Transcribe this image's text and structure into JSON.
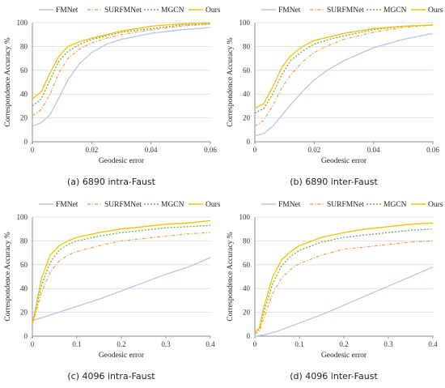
{
  "legend": [
    "FMNet",
    "SURFMNet",
    "MGCN",
    "Ours"
  ],
  "styles": {
    "FMNet": {
      "color": "#b4c7e7",
      "dash": ""
    },
    "SURFMNet": {
      "color": "#f4a460",
      "dash": "4,2,1.2,2"
    },
    "MGCN": {
      "color": "#70ad47",
      "dash": "2,2"
    },
    "Ours": {
      "color": "#f5c000",
      "dash": ""
    }
  },
  "chart_data": [
    {
      "type": "line",
      "caption": "(a) 6890 intra-Faust",
      "xlabel": "Geodesic error",
      "ylabel": "Correspondence Accuracy %",
      "xlim": [
        0,
        0.06
      ],
      "ylim": [
        0,
        100
      ],
      "xticks": [
        0,
        0.02,
        0.04,
        0.06
      ],
      "xtick_labels": [
        "0",
        "0.02",
        "0.04",
        "0.06"
      ],
      "yticks": [
        0,
        20,
        40,
        60,
        80,
        100
      ],
      "ytick_labels": [
        "0",
        "20",
        "40",
        "60",
        "80",
        "100"
      ],
      "grid": "horizontal",
      "legend_position": "top",
      "series": [
        {
          "name": "FMNet",
          "x": [
            0,
            0.003,
            0.006,
            0.009,
            0.012,
            0.016,
            0.02,
            0.025,
            0.03,
            0.04,
            0.05,
            0.06
          ],
          "y": [
            13,
            16,
            23,
            37,
            52,
            66,
            75,
            82,
            86,
            91,
            94,
            96
          ]
        },
        {
          "name": "SURFMNet",
          "x": [
            0,
            0.003,
            0.006,
            0.009,
            0.012,
            0.016,
            0.02,
            0.025,
            0.03,
            0.04,
            0.05,
            0.06
          ],
          "y": [
            22,
            27,
            40,
            58,
            70,
            78,
            83,
            87,
            90,
            94,
            97,
            99
          ]
        },
        {
          "name": "MGCN",
          "x": [
            0,
            0.003,
            0.006,
            0.009,
            0.012,
            0.016,
            0.02,
            0.025,
            0.03,
            0.04,
            0.05,
            0.06
          ],
          "y": [
            30,
            36,
            52,
            68,
            76,
            82,
            86,
            89,
            92,
            95,
            98,
            99
          ]
        },
        {
          "name": "Ours",
          "x": [
            0,
            0.003,
            0.006,
            0.009,
            0.012,
            0.016,
            0.02,
            0.025,
            0.03,
            0.04,
            0.05,
            0.06
          ],
          "y": [
            36,
            42,
            58,
            72,
            80,
            84,
            87,
            90,
            93,
            97,
            99,
            100
          ]
        }
      ]
    },
    {
      "type": "line",
      "caption": "(b) 6890 inter-Faust",
      "xlabel": "Geodesic error",
      "ylabel": "Correspondence Accuracy %",
      "xlim": [
        0,
        0.06
      ],
      "ylim": [
        0,
        100
      ],
      "xticks": [
        0,
        0.02,
        0.04,
        0.06
      ],
      "xtick_labels": [
        "0",
        "0.02",
        "0.04",
        "0.06"
      ],
      "yticks": [
        0,
        20,
        40,
        60,
        80,
        100
      ],
      "ytick_labels": [
        "0",
        "20",
        "40",
        "60",
        "80",
        "100"
      ],
      "grid": "horizontal",
      "legend_position": "top",
      "series": [
        {
          "name": "FMNet",
          "x": [
            0,
            0.003,
            0.006,
            0.009,
            0.012,
            0.016,
            0.02,
            0.025,
            0.03,
            0.04,
            0.05,
            0.06
          ],
          "y": [
            5,
            7,
            13,
            22,
            31,
            42,
            52,
            61,
            68,
            79,
            86,
            91
          ]
        },
        {
          "name": "SURFMNet",
          "x": [
            0,
            0.003,
            0.006,
            0.009,
            0.012,
            0.016,
            0.02,
            0.025,
            0.03,
            0.04,
            0.05,
            0.06
          ],
          "y": [
            13,
            18,
            30,
            45,
            56,
            67,
            75,
            81,
            86,
            92,
            96,
            98
          ]
        },
        {
          "name": "MGCN",
          "x": [
            0,
            0.003,
            0.006,
            0.009,
            0.012,
            0.016,
            0.02,
            0.025,
            0.03,
            0.04,
            0.05,
            0.06
          ],
          "y": [
            24,
            28,
            40,
            56,
            68,
            76,
            82,
            86,
            89,
            94,
            97,
            98
          ]
        },
        {
          "name": "Ours",
          "x": [
            0,
            0.003,
            0.006,
            0.009,
            0.012,
            0.016,
            0.02,
            0.025,
            0.03,
            0.04,
            0.05,
            0.06
          ],
          "y": [
            28,
            32,
            46,
            62,
            72,
            80,
            85,
            88,
            91,
            95,
            97,
            98
          ]
        }
      ]
    },
    {
      "type": "line",
      "caption": "(c) 4096 intra-Faust",
      "xlabel": "Geodesic error",
      "ylabel": "Correspondence Accuracy %",
      "xlim": [
        0,
        0.4
      ],
      "ylim": [
        0,
        100
      ],
      "xticks": [
        0,
        0.1,
        0.2,
        0.3,
        0.4
      ],
      "xtick_labels": [
        "0",
        "0.1",
        "0.2",
        "0.3",
        "0.4"
      ],
      "yticks": [
        0,
        20,
        40,
        60,
        80,
        100
      ],
      "ytick_labels": [
        "0",
        "20",
        "40",
        "60",
        "80",
        "100"
      ],
      "grid": "horizontal",
      "legend_position": "top",
      "series": [
        {
          "name": "FMNet",
          "x": [
            0,
            0.05,
            0.1,
            0.15,
            0.2,
            0.25,
            0.3,
            0.35,
            0.4
          ],
          "y": [
            13,
            19,
            25,
            31,
            38,
            45,
            52,
            58,
            66
          ]
        },
        {
          "name": "SURFMNet",
          "x": [
            0,
            0.02,
            0.04,
            0.06,
            0.08,
            0.1,
            0.15,
            0.2,
            0.25,
            0.3,
            0.35,
            0.4
          ],
          "y": [
            10,
            36,
            54,
            63,
            68,
            71,
            76,
            80,
            82,
            84,
            86,
            87
          ]
        },
        {
          "name": "MGCN",
          "x": [
            0,
            0.02,
            0.04,
            0.06,
            0.08,
            0.1,
            0.15,
            0.2,
            0.25,
            0.3,
            0.35,
            0.4
          ],
          "y": [
            10,
            42,
            62,
            72,
            77,
            80,
            84,
            87,
            89,
            91,
            92,
            93
          ]
        },
        {
          "name": "Ours",
          "x": [
            0,
            0.02,
            0.04,
            0.06,
            0.08,
            0.1,
            0.15,
            0.2,
            0.25,
            0.3,
            0.35,
            0.4
          ],
          "y": [
            10,
            48,
            68,
            76,
            80,
            83,
            87,
            90,
            92,
            94,
            95,
            97
          ]
        }
      ]
    },
    {
      "type": "line",
      "caption": "(d) 4096 inter-Faust",
      "xlabel": "Geodesic error",
      "ylabel": "Correspondence Accuracy %",
      "xlim": [
        0,
        0.4
      ],
      "ylim": [
        0,
        100
      ],
      "xticks": [
        0,
        0.1,
        0.2,
        0.3,
        0.4
      ],
      "xtick_labels": [
        "0",
        "0.1",
        "0.2",
        "0.3",
        "0.4"
      ],
      "yticks": [
        0,
        20,
        40,
        60,
        80,
        100
      ],
      "ytick_labels": [
        "0",
        "20",
        "40",
        "60",
        "80",
        "100"
      ],
      "grid": "horizontal",
      "legend_position": "top",
      "series": [
        {
          "name": "FMNet",
          "x": [
            0,
            0.02,
            0.05,
            0.1,
            0.15,
            0.2,
            0.25,
            0.3,
            0.35,
            0.4
          ],
          "y": [
            0,
            1,
            4,
            11,
            18,
            26,
            34,
            42,
            50,
            58
          ]
        },
        {
          "name": "SURFMNet",
          "x": [
            0,
            0.01,
            0.02,
            0.04,
            0.06,
            0.08,
            0.1,
            0.15,
            0.2,
            0.25,
            0.3,
            0.35,
            0.4
          ],
          "y": [
            2,
            4,
            15,
            36,
            49,
            56,
            61,
            68,
            73,
            75,
            77,
            79,
            80
          ]
        },
        {
          "name": "MGCN",
          "x": [
            0,
            0.01,
            0.02,
            0.04,
            0.06,
            0.08,
            0.1,
            0.15,
            0.2,
            0.25,
            0.3,
            0.35,
            0.4
          ],
          "y": [
            3,
            6,
            20,
            44,
            59,
            67,
            72,
            79,
            83,
            85,
            87,
            89,
            90
          ]
        },
        {
          "name": "Ours",
          "x": [
            0,
            0.01,
            0.02,
            0.04,
            0.06,
            0.08,
            0.1,
            0.15,
            0.2,
            0.25,
            0.3,
            0.35,
            0.4
          ],
          "y": [
            3,
            7,
            24,
            50,
            64,
            71,
            76,
            83,
            87,
            90,
            92,
            94,
            95
          ]
        }
      ]
    }
  ]
}
